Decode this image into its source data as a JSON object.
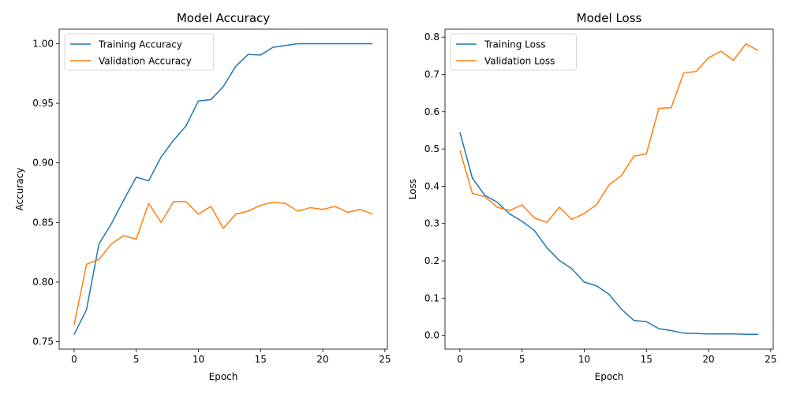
{
  "chart_data": [
    {
      "type": "line",
      "title": "Model Accuracy",
      "xlabel": "Epoch",
      "ylabel": "Accuracy",
      "xlim": [
        -1.2,
        25.2
      ],
      "ylim": [
        0.7438,
        1.0122
      ],
      "xticks": [
        0,
        5,
        10,
        15,
        20,
        25
      ],
      "xtick_labels": [
        "0",
        "5",
        "10",
        "15",
        "20",
        "25"
      ],
      "yticks": [
        0.75,
        0.8,
        0.85,
        0.9,
        0.95,
        1.0
      ],
      "ytick_labels": [
        "0.75",
        "0.80",
        "0.85",
        "0.90",
        "0.95",
        "1.00"
      ],
      "grid": false,
      "legend_position": "upper-left",
      "x": [
        0,
        1,
        2,
        3,
        4,
        5,
        6,
        7,
        8,
        9,
        10,
        11,
        12,
        13,
        14,
        15,
        16,
        17,
        18,
        19,
        20,
        21,
        22,
        23,
        24
      ],
      "series": [
        {
          "name": "Training Accuracy",
          "color": "#1f77b4",
          "values": [
            0.756,
            0.777,
            0.832,
            0.849,
            0.869,
            0.888,
            0.885,
            0.905,
            0.919,
            0.931,
            0.952,
            0.953,
            0.964,
            0.981,
            0.991,
            0.9905,
            0.997,
            0.9985,
            1.0,
            1.0,
            1.0,
            1.0,
            1.0,
            1.0,
            1.0
          ]
        },
        {
          "name": "Validation Accuracy",
          "color": "#ff7f0e",
          "values": [
            0.764,
            0.815,
            0.819,
            0.832,
            0.839,
            0.836,
            0.866,
            0.85,
            0.8675,
            0.8675,
            0.857,
            0.8635,
            0.845,
            0.857,
            0.8595,
            0.8645,
            0.867,
            0.866,
            0.8595,
            0.8625,
            0.861,
            0.8635,
            0.8585,
            0.861,
            0.857
          ]
        }
      ]
    },
    {
      "type": "line",
      "title": "Model Loss",
      "xlabel": "Epoch",
      "ylabel": "Loss",
      "xlim": [
        -1.2,
        25.2
      ],
      "ylim": [
        -0.0367,
        0.8215
      ],
      "xticks": [
        0,
        5,
        10,
        15,
        20,
        25
      ],
      "xtick_labels": [
        "0",
        "5",
        "10",
        "15",
        "20",
        "25"
      ],
      "yticks": [
        0.0,
        0.1,
        0.2,
        0.3,
        0.4,
        0.5,
        0.6,
        0.7,
        0.8
      ],
      "ytick_labels": [
        "0.0",
        "0.1",
        "0.2",
        "0.3",
        "0.4",
        "0.5",
        "0.6",
        "0.7",
        "0.8"
      ],
      "grid": false,
      "legend_position": "upper-left",
      "x": [
        0,
        1,
        2,
        3,
        4,
        5,
        6,
        7,
        8,
        9,
        10,
        11,
        12,
        13,
        14,
        15,
        16,
        17,
        18,
        19,
        20,
        21,
        22,
        23,
        24
      ],
      "series": [
        {
          "name": "Training Loss",
          "color": "#1f77b4",
          "values": [
            0.545,
            0.422,
            0.376,
            0.357,
            0.326,
            0.306,
            0.281,
            0.235,
            0.201,
            0.179,
            0.143,
            0.133,
            0.11,
            0.07,
            0.04,
            0.037,
            0.018,
            0.013,
            0.006,
            0.005,
            0.004,
            0.004,
            0.004,
            0.003,
            0.003
          ]
        },
        {
          "name": "Validation Loss",
          "color": "#ff7f0e",
          "values": [
            0.496,
            0.381,
            0.372,
            0.344,
            0.335,
            0.35,
            0.315,
            0.303,
            0.344,
            0.311,
            0.327,
            0.351,
            0.404,
            0.429,
            0.481,
            0.487,
            0.609,
            0.611,
            0.704,
            0.708,
            0.745,
            0.762,
            0.738,
            0.782,
            0.764
          ]
        }
      ]
    }
  ]
}
